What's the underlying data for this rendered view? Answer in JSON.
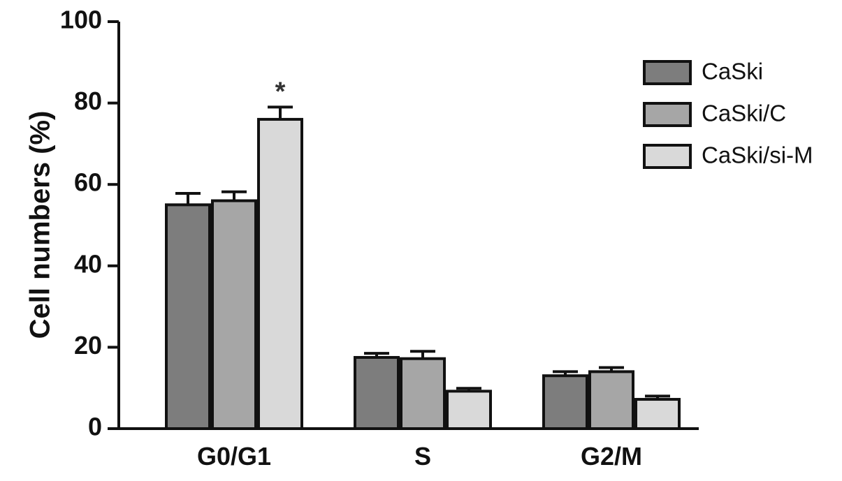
{
  "chart_data": {
    "type": "bar",
    "ylabel": "Cell numbers (%)",
    "xlabel": "",
    "ylim": [
      0,
      100
    ],
    "yticks": [
      "0",
      "20",
      "40",
      "60",
      "80",
      "100"
    ],
    "categories": [
      "G0/G1",
      "S",
      "G2/M"
    ],
    "series": [
      {
        "name": "CaSki",
        "color": "#7d7d7d",
        "values": [
          55,
          17.5,
          13
        ],
        "errors": [
          2.8,
          1.0,
          1.0
        ]
      },
      {
        "name": "CaSki/C",
        "color": "#a6a6a6",
        "values": [
          56,
          17.2,
          14
        ],
        "errors": [
          2.2,
          1.8,
          1.0
        ]
      },
      {
        "name": "CaSki/si-M",
        "color": "#d9d9d9",
        "values": [
          76,
          9.2,
          7.2
        ],
        "errors": [
          3.0,
          0.7,
          0.8
        ]
      }
    ],
    "annotations": [
      {
        "text": "*",
        "category": "G0/G1",
        "series": "CaSki/si-M"
      }
    ],
    "legend": "top-right",
    "grid": false
  }
}
